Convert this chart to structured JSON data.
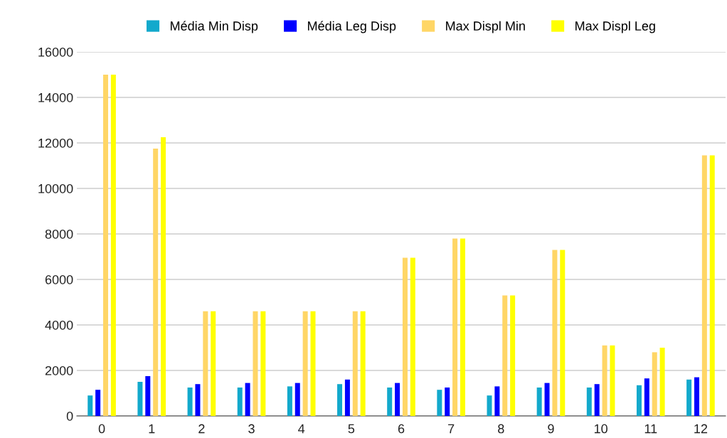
{
  "chart_data": {
    "type": "bar",
    "categories": [
      "0",
      "1",
      "2",
      "3",
      "4",
      "5",
      "6",
      "7",
      "8",
      "9",
      "10",
      "11",
      "12"
    ],
    "series": [
      {
        "name": "Média Min Disp",
        "color": "#12a9cc",
        "values": [
          900,
          1500,
          1250,
          1250,
          1300,
          1400,
          1250,
          1150,
          900,
          1250,
          1250,
          1350,
          1600
        ]
      },
      {
        "name": "Média Leg Disp",
        "color": "#0000ff",
        "values": [
          1150,
          1750,
          1400,
          1450,
          1450,
          1600,
          1450,
          1250,
          1300,
          1450,
          1400,
          1650,
          1700
        ]
      },
      {
        "name": "Max Displ Min",
        "color": "#ffd666",
        "values": [
          15000,
          11750,
          4600,
          4600,
          4600,
          4600,
          6950,
          7800,
          5300,
          7300,
          3100,
          2800,
          11450
        ]
      },
      {
        "name": "Max Displ Leg",
        "color": "#ffff00",
        "values": [
          15000,
          12250,
          4600,
          4600,
          4600,
          4600,
          6950,
          7800,
          5300,
          7300,
          3100,
          3000,
          11450
        ]
      }
    ],
    "ylim": [
      0,
      16000
    ],
    "yticks": [
      0,
      2000,
      4000,
      6000,
      8000,
      10000,
      12000,
      14000,
      16000
    ],
    "grid": "y",
    "legend": "top"
  }
}
